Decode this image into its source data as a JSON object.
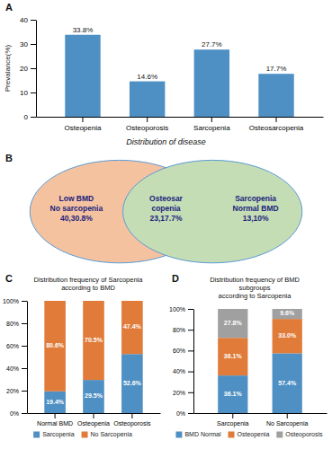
{
  "chart_data": [
    {
      "type": "bar",
      "annotations": [
        "A"
      ],
      "categories": [
        "Osteopenia",
        "Osteoporosis",
        "Sarcopenia",
        "Osteosarcopenia"
      ],
      "values": [
        33.8,
        14.6,
        27.7,
        17.7
      ],
      "value_labels": [
        "33.8%",
        "14.6%",
        "27.7%",
        "17.7%"
      ],
      "data_labels": true,
      "color": "#4f90c4",
      "xlabel": "Distribution of disease",
      "ylabel": "Prevalance(%)",
      "ylim": [
        0,
        40
      ],
      "yticks": [
        0,
        10,
        20,
        30,
        40
      ]
    },
    {
      "type": "venn",
      "annotations": [
        "B"
      ],
      "categories": [
        "Low BMD\nNo sarcopenia\n40,30.8%",
        "Osteosar\ncopenia\n23,17.7%",
        "Sarcopenia\nNormal BMD\n13,10%"
      ],
      "colors": [
        "#f5c2a0",
        "#c5ddb5"
      ],
      "color": "#5b9bd5"
    },
    {
      "type": "bar",
      "stacked": true,
      "annotations": [
        "C"
      ],
      "title": "Distribution frequency of Sarcopenia\naccording to BMD",
      "categories": [
        "Normal BMD",
        "Osteopenia",
        "Osteoporosis"
      ],
      "series": [
        {
          "name": "Sarcopenia",
          "color": "#4f90c4",
          "values": [
            19.4,
            29.5,
            52.6
          ],
          "value_labels": [
            "19.4%",
            "29.5%",
            "52.6%"
          ]
        },
        {
          "name": "No Sarcopenia",
          "color": "#e07b39",
          "values": [
            80.6,
            70.5,
            47.4
          ],
          "value_labels": [
            "80.6%",
            "70.5%",
            "47.4%"
          ]
        }
      ],
      "data_labels": true,
      "legend": "bottom",
      "ylim": [
        0,
        100
      ],
      "yticks": [
        {
          "value": 0,
          "label": "0%"
        },
        {
          "value": 20,
          "label": "20%"
        },
        {
          "value": 40,
          "label": "40%"
        },
        {
          "value": 60,
          "label": "60%"
        },
        {
          "value": 80,
          "label": "80%"
        },
        {
          "value": 100,
          "label": "100%"
        }
      ]
    },
    {
      "type": "bar",
      "stacked": true,
      "annotations": [
        "D"
      ],
      "title": "Distribution frequency of BMD\nsubgroups\naccording to Sarcopenia",
      "categories": [
        "Sarcopenia",
        "No Sarcopenia"
      ],
      "series": [
        {
          "name": "BMD Normal",
          "color": "#4f90c4",
          "values": [
            36.1,
            57.4
          ],
          "value_labels": [
            "36.1%",
            "57.4%"
          ]
        },
        {
          "name": "Osteopenia",
          "color": "#e07b39",
          "values": [
            36.1,
            33.0
          ],
          "value_labels": [
            "36.1%",
            "33.0%"
          ]
        },
        {
          "name": "Osteoporosis",
          "color": "#a0a0a0",
          "values": [
            27.8,
            9.6
          ],
          "value_labels": [
            "27.8%",
            "9.6%"
          ]
        }
      ],
      "data_labels": true,
      "legend": "bottom",
      "ylim": [
        0,
        100
      ],
      "yticks": [
        {
          "value": 0,
          "label": "0%"
        },
        {
          "value": 20,
          "label": "20%"
        },
        {
          "value": 40,
          "label": "40%"
        },
        {
          "value": 60,
          "label": "60%"
        },
        {
          "value": 80,
          "label": "80%"
        },
        {
          "value": 100,
          "label": "100%"
        }
      ]
    }
  ]
}
